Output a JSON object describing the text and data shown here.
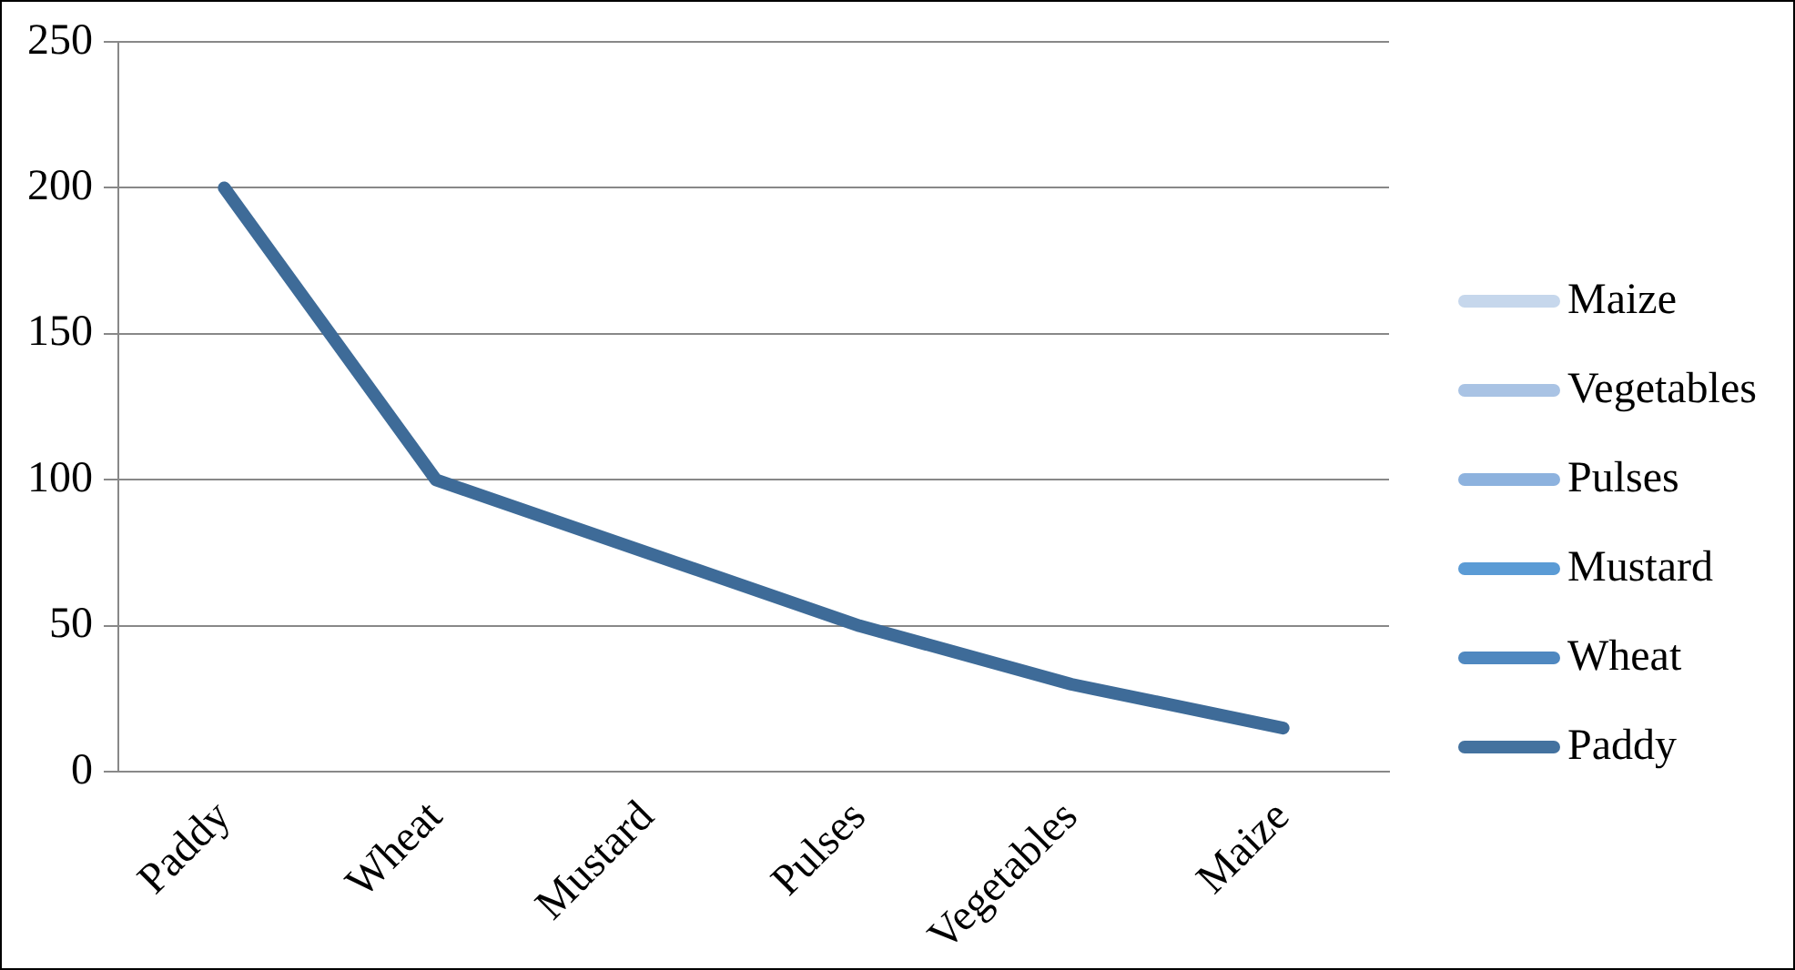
{
  "chart_data": {
    "type": "line",
    "categories": [
      "Paddy",
      "Wheat",
      "Mustard",
      "Pulses",
      "Vegetables",
      "Maize"
    ],
    "values": [
      200,
      100,
      75,
      50,
      30,
      15
    ],
    "color": "#3e6b98",
    "colors": [
      "#44729f",
      "#4f88c0",
      "#5b9bd5",
      "#8db2de",
      "#a9c3e4",
      "#c6d7ec"
    ],
    "ylim": [
      0,
      250
    ],
    "yticks": [
      0,
      50,
      100,
      150,
      200,
      250
    ],
    "grid": "y",
    "marker": "none",
    "line_style": "solid"
  }
}
